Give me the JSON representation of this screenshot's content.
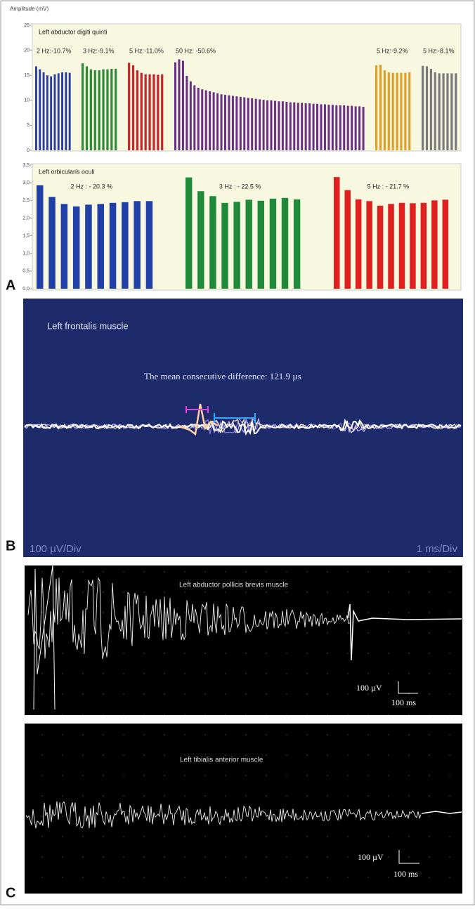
{
  "panel_labels": [
    "A",
    "B",
    "C"
  ],
  "chart_data": [
    {
      "type": "bar",
      "title": "Left abductor digiti quinti",
      "y_label": "Amplitude (mV)",
      "ylim": [
        0,
        25
      ],
      "yticks": [
        0,
        5,
        10,
        15,
        20,
        25
      ],
      "series": [
        {
          "name": "2 Hz:-10.7%",
          "color": "#2b3fa0",
          "values": [
            16.8,
            16.2,
            15.6,
            15.0,
            14.8,
            15.2,
            15.4,
            15.6,
            15.6,
            15.5
          ]
        },
        {
          "name": "3 Hz:-9.1%",
          "color": "#2f8a3a",
          "values": [
            17.4,
            16.8,
            16.2,
            16.0,
            16.0,
            16.2,
            16.2,
            16.3,
            16.3
          ]
        },
        {
          "name": "5 Hz:-11.0%",
          "color": "#c8262a",
          "values": [
            17.5,
            17.0,
            16.0,
            15.5,
            15.2,
            15.2,
            15.2,
            15.1,
            15.2
          ]
        },
        {
          "name": "50 Hz: -50.6%",
          "color": "#6a2f86",
          "values": [
            17.6,
            18.2,
            17.9,
            14.9,
            13.8,
            13.0,
            12.5,
            12.2,
            12.0,
            11.8,
            11.6,
            11.4,
            11.2,
            11.1,
            11.0,
            10.9,
            10.8,
            10.7,
            10.6,
            10.5,
            10.4,
            10.3,
            10.2,
            10.1,
            10.0,
            10.0,
            9.9,
            9.8,
            9.8,
            9.7,
            9.6,
            9.6,
            9.5,
            9.5,
            9.4,
            9.4,
            9.3,
            9.3,
            9.2,
            9.2,
            9.1,
            9.1,
            9.0,
            9.0,
            9.0,
            8.9,
            8.9,
            8.8,
            8.8,
            8.7
          ]
        },
        {
          "name": "5 Hz:-9.2%",
          "color": "#e0a12a",
          "values": [
            17.0,
            17.1,
            16.0,
            15.6,
            15.5,
            15.5,
            15.5,
            15.5,
            15.6
          ]
        },
        {
          "name": "5 Hz:-8.1%",
          "color": "#7b7b7b",
          "values": [
            16.9,
            16.8,
            16.3,
            15.6,
            15.4,
            15.4,
            15.4,
            15.4,
            15.4
          ]
        }
      ]
    },
    {
      "type": "bar",
      "title": "Left orbicularis oculi",
      "ylim": [
        0,
        3.5
      ],
      "yticks": [
        {
          "value": 0,
          "label": "0,0"
        },
        {
          "value": 0.5,
          "label": "0,5"
        },
        {
          "value": 1,
          "label": "1,0"
        },
        {
          "value": 1.5,
          "label": "1,5"
        },
        {
          "value": 2,
          "label": "2,0"
        },
        {
          "value": 2.5,
          "label": "2,5"
        },
        {
          "value": 3,
          "label": "3,0"
        },
        {
          "value": 3.5,
          "label": "3,5"
        }
      ],
      "series": [
        {
          "name": "2 Hz : - 20.3 %",
          "color": "#2040a8",
          "values": [
            2.93,
            2.6,
            2.4,
            2.33,
            2.38,
            2.4,
            2.43,
            2.45,
            2.48,
            2.48
          ]
        },
        {
          "name": "3 Hz : - 22.5 %",
          "color": "#1f8a3a",
          "values": [
            3.15,
            2.76,
            2.62,
            2.43,
            2.46,
            2.52,
            2.49,
            2.55,
            2.57,
            2.53
          ]
        },
        {
          "name": "5 Hz : - 21.7 %",
          "color": "#e0201f",
          "values": [
            3.16,
            2.79,
            2.53,
            2.48,
            2.35,
            2.4,
            2.43,
            2.42,
            2.43,
            2.5,
            2.52
          ]
        }
      ]
    }
  ],
  "panel_b": {
    "title": "Left frontalis muscle",
    "annotation": "The mean consecutive difference: 121.9 µs",
    "y_scale": "100 µV/Div",
    "x_scale": "1 ms/Div"
  },
  "panel_c": [
    {
      "title": "Left abductor pollicis brevis muscle",
      "y_scale": "100 µV",
      "x_scale": "100 ms"
    },
    {
      "title": "Left tibialis anterior muscle",
      "y_scale": "100 µV",
      "x_scale": "100 ms"
    }
  ]
}
